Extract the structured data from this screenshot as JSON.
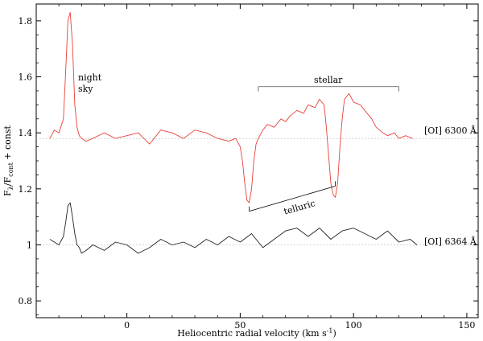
{
  "chart_data": {
    "type": "line",
    "title": "",
    "xlabel": "Heliocentric radial velocity (km s",
    "xlabel_sup": "-1",
    "xlabel_close": ")",
    "ylabel_parts": {
      "F": "F",
      "sub1": "λ",
      "slash": "/F",
      "sub2": "cont",
      "rest": " + const"
    },
    "xlim": [
      -40,
      155
    ],
    "ylim": [
      0.74,
      1.86
    ],
    "xticks": [
      {
        "value": 0,
        "label": "0"
      },
      {
        "value": 50,
        "label": "50"
      },
      {
        "value": 100,
        "label": "100"
      },
      {
        "value": 150,
        "label": "150"
      }
    ],
    "yticks": [
      {
        "value": 0.8,
        "label": "0.8"
      },
      {
        "value": 1.0,
        "label": "1"
      },
      {
        "value": 1.2,
        "label": "1.2"
      },
      {
        "value": 1.4,
        "label": "1.4"
      },
      {
        "value": 1.6,
        "label": "1.6"
      },
      {
        "value": 1.8,
        "label": "1.8"
      }
    ],
    "series": [
      {
        "name": "[OI] 6300 Å",
        "color": "#e8413a",
        "baseline": 1.38,
        "x": [
          -34,
          -32,
          -30,
          -28,
          -27,
          -26,
          -25,
          -24,
          -23,
          -22,
          -21,
          -20,
          -18,
          -15,
          -10,
          -5,
          0,
          5,
          10,
          15,
          20,
          25,
          30,
          35,
          40,
          45,
          48,
          50,
          51,
          52,
          53,
          54,
          55,
          56,
          57,
          58,
          60,
          62,
          65,
          68,
          70,
          72,
          75,
          78,
          80,
          83,
          85,
          87,
          88,
          89,
          90,
          91,
          92,
          93,
          94,
          95,
          96,
          98,
          100,
          103,
          105,
          108,
          110,
          113,
          115,
          118,
          120,
          123,
          126
        ],
        "y": [
          1.38,
          1.41,
          1.4,
          1.45,
          1.62,
          1.8,
          1.83,
          1.72,
          1.5,
          1.42,
          1.39,
          1.38,
          1.37,
          1.38,
          1.4,
          1.38,
          1.39,
          1.4,
          1.36,
          1.41,
          1.4,
          1.38,
          1.41,
          1.4,
          1.38,
          1.37,
          1.38,
          1.35,
          1.3,
          1.22,
          1.16,
          1.15,
          1.2,
          1.3,
          1.36,
          1.38,
          1.41,
          1.43,
          1.42,
          1.45,
          1.44,
          1.46,
          1.48,
          1.47,
          1.5,
          1.49,
          1.52,
          1.5,
          1.42,
          1.32,
          1.22,
          1.18,
          1.17,
          1.22,
          1.35,
          1.45,
          1.52,
          1.54,
          1.51,
          1.5,
          1.48,
          1.45,
          1.42,
          1.4,
          1.39,
          1.4,
          1.38,
          1.39,
          1.38
        ]
      },
      {
        "name": "[OI] 6364 Å",
        "color": "#222222",
        "baseline": 1.0,
        "x": [
          -34,
          -32,
          -30,
          -28,
          -27,
          -26,
          -25,
          -24,
          -23,
          -22,
          -21,
          -20,
          -18,
          -15,
          -10,
          -5,
          0,
          5,
          10,
          15,
          20,
          25,
          30,
          35,
          40,
          45,
          50,
          55,
          60,
          65,
          70,
          75,
          80,
          85,
          90,
          95,
          100,
          105,
          110,
          115,
          120,
          125,
          128
        ],
        "y": [
          1.02,
          1.01,
          1.0,
          1.03,
          1.08,
          1.14,
          1.15,
          1.1,
          1.04,
          1.0,
          0.99,
          0.97,
          0.98,
          1.0,
          0.98,
          1.01,
          1.0,
          0.97,
          0.99,
          1.02,
          1.0,
          1.01,
          0.99,
          1.02,
          1.0,
          1.03,
          1.01,
          1.04,
          0.99,
          1.02,
          1.05,
          1.06,
          1.03,
          1.06,
          1.02,
          1.05,
          1.06,
          1.04,
          1.02,
          1.05,
          1.01,
          1.02,
          1.0
        ]
      }
    ],
    "annotations": {
      "night_sky_line1": "night",
      "night_sky_line2": "sky",
      "stellar": "stellar",
      "telluric": "telluric",
      "label_6300": "[OI] 6300 Å",
      "label_6364": "[OI] 6364 Å"
    },
    "grid": false,
    "legend": "none"
  }
}
